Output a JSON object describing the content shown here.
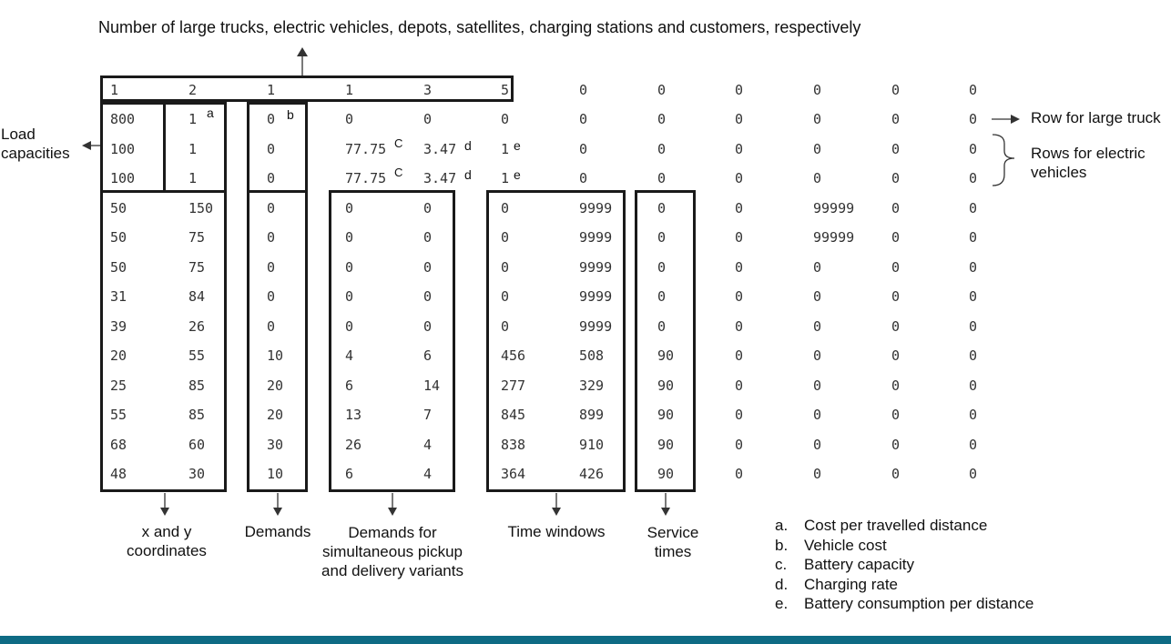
{
  "title": "Number of large trucks, electric vehicles, depots, satellites, charging stations and customers, respectively",
  "grid": [
    [
      "1",
      "2",
      "1",
      "1",
      "3",
      "5",
      "0",
      "0",
      "0",
      "0",
      "0",
      "0"
    ],
    [
      "800",
      "1",
      "0",
      "0",
      "0",
      "0",
      "0",
      "0",
      "0",
      "0",
      "0",
      "0"
    ],
    [
      "100",
      "1",
      "0",
      "77.75",
      "3.47",
      "1",
      "0",
      "0",
      "0",
      "0",
      "0",
      "0"
    ],
    [
      "100",
      "1",
      "0",
      "77.75",
      "3.47",
      "1",
      "0",
      "0",
      "0",
      "0",
      "0",
      "0"
    ],
    [
      "50",
      "150",
      "0",
      "0",
      "0",
      "0",
      "9999",
      "0",
      "0",
      "99999",
      "0",
      "0"
    ],
    [
      "50",
      "75",
      "0",
      "0",
      "0",
      "0",
      "9999",
      "0",
      "0",
      "99999",
      "0",
      "0"
    ],
    [
      "50",
      "75",
      "0",
      "0",
      "0",
      "0",
      "9999",
      "0",
      "0",
      "0",
      "0",
      "0"
    ],
    [
      "31",
      "84",
      "0",
      "0",
      "0",
      "0",
      "9999",
      "0",
      "0",
      "0",
      "0",
      "0"
    ],
    [
      "39",
      "26",
      "0",
      "0",
      "0",
      "0",
      "9999",
      "0",
      "0",
      "0",
      "0",
      "0"
    ],
    [
      "20",
      "55",
      "10",
      "4",
      "6",
      "456",
      "508",
      "90",
      "0",
      "0",
      "0",
      "0"
    ],
    [
      "25",
      "85",
      "20",
      "6",
      "14",
      "277",
      "329",
      "90",
      "0",
      "0",
      "0",
      "0"
    ],
    [
      "55",
      "85",
      "20",
      "13",
      "7",
      "845",
      "899",
      "90",
      "0",
      "0",
      "0",
      "0"
    ],
    [
      "68",
      "60",
      "30",
      "26",
      "4",
      "838",
      "910",
      "90",
      "0",
      "0",
      "0",
      "0"
    ],
    [
      "48",
      "30",
      "10",
      "6",
      "4",
      "364",
      "426",
      "90",
      "0",
      "0",
      "0",
      "0"
    ]
  ],
  "superscripts": {
    "a": "a",
    "b": "b",
    "c": "C",
    "d": "d",
    "e": "e"
  },
  "annotations": {
    "load_capacities": "Load capacities",
    "row_large_truck": "Row for large truck",
    "rows_electric": "Rows for electric vehicles"
  },
  "column_labels": {
    "xy": "x and y coordinates",
    "demands": "Demands",
    "pickup_delivery": "Demands for simultaneous pickup and delivery variants",
    "time_windows": "Time windows",
    "service_times": "Service times"
  },
  "legend": [
    {
      "key": "a.",
      "text": "Cost per travelled distance"
    },
    {
      "key": "b.",
      "text": "Vehicle cost"
    },
    {
      "key": "c.",
      "text": "Battery capacity"
    },
    {
      "key": "d.",
      "text": "Charging rate"
    },
    {
      "key": "e.",
      "text": "Battery consumption per distance"
    }
  ],
  "colors": {
    "bottom_bar": "#0e6b84",
    "box_stroke": "#1a1a1a"
  }
}
